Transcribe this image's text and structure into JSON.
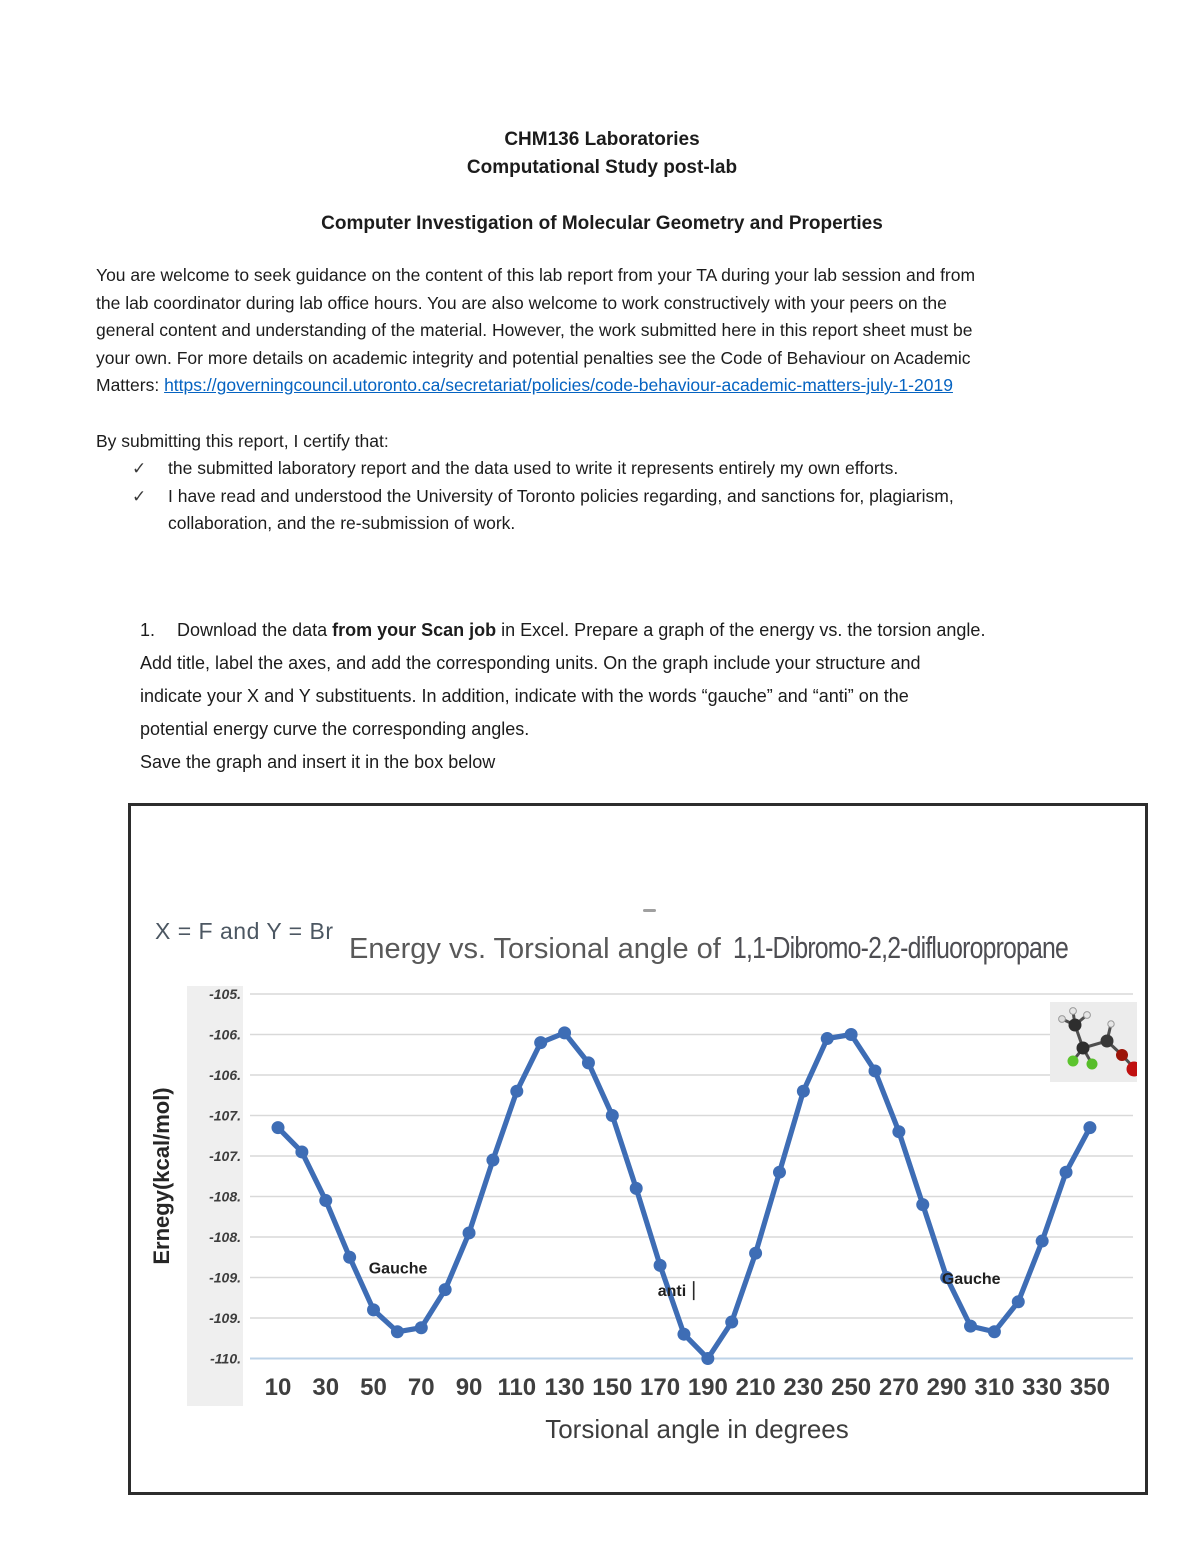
{
  "page": {
    "header": {
      "line1": "CHM136 Laboratories",
      "line2": "Computational Study post-lab",
      "subtitle": "Computer Investigation of Molecular Geometry and Properties"
    },
    "intro": {
      "lines": [
        "You are welcome to seek guidance on the content of this lab report from your TA during your lab session and from",
        "the lab coordinator during lab office hours.  You are also welcome to work constructively with your peers on the",
        "general content and understanding of the material.  However, the work submitted here in this report sheet must be",
        "your own. For more details on academic integrity and potential penalties see the Code of Behaviour on Academic"
      ],
      "matters_prefix": "Matters: ",
      "link_text": "https://governingcouncil.utoronto.ca/secretariat/policies/code-behaviour-academic-matters-july-1-2019"
    },
    "certify": {
      "intro": "By submitting this report, I certify that:",
      "check_glyph": "✓",
      "item1": "the submitted laboratory report and the data used to write it represents entirely my own efforts.",
      "item2_line1": "I have read and understood the University of Toronto policies regarding, and sanctions for, plagiarism,",
      "item2_line2": "collaboration, and the re-submission of work."
    },
    "task1": {
      "number": "1.",
      "line1_pre": "Download the data ",
      "line1_bold": "from your Scan job",
      "line1_post": " in Excel.  Prepare a graph of the energy vs. the torsion angle.",
      "line2": "Add title, label the axes, and add the corresponding units. On the graph include your structure and",
      "line3": "indicate your X and Y substituents.  In addition, indicate with the words “gauche” and “anti” on the",
      "line4": "potential energy curve the corresponding angles.",
      "line5": "Save the graph and insert it in the box below"
    }
  },
  "chart_box": {
    "substituents_note": "X = F and Y = Br",
    "title_prefix": "Energy vs. Torsional angle of",
    "title_compound": "1,1-Dibromo-2,2-difluoropropane"
  },
  "chart_data": {
    "type": "line",
    "title": "Energy vs. Torsional angle of 1,1-Dibromo-2,2-difluoropropane",
    "xlabel": "Torsional angle in degrees",
    "ylabel": "Ernegy(kcal/mol)",
    "legend": "none",
    "grid": true,
    "line_color": "#3e6db5",
    "grid_color": "#d9d9d9",
    "baseline_color": "#bdd3e8",
    "ylim": [
      -110.25,
      -105.4
    ],
    "x": [
      10,
      20,
      30,
      40,
      50,
      60,
      70,
      80,
      90,
      100,
      110,
      120,
      130,
      140,
      150,
      160,
      170,
      180,
      190,
      200,
      210,
      220,
      230,
      240,
      250,
      260,
      270,
      280,
      290,
      300,
      310,
      320,
      330,
      340,
      350
    ],
    "values": [
      -107.15,
      -107.45,
      -108.05,
      -108.75,
      -109.4,
      -109.67,
      -109.62,
      -109.15,
      -108.45,
      -107.55,
      -106.7,
      -106.1,
      -105.98,
      -106.35,
      -107.0,
      -107.9,
      -108.85,
      -109.7,
      -110.0,
      -109.55,
      -108.7,
      -107.7,
      -106.7,
      -106.05,
      -106.0,
      -106.45,
      -107.2,
      -108.1,
      -109.0,
      -109.6,
      -109.67,
      -109.3,
      -108.55,
      -107.7,
      -107.15
    ],
    "x_tick_labels": [
      "10",
      "30",
      "50",
      "70",
      "90",
      "110",
      "130",
      "150",
      "170",
      "190",
      "210",
      "230",
      "250",
      "270",
      "290",
      "310",
      "330",
      "350"
    ],
    "y_tick_labels": [
      "-105.",
      "-106.",
      "-106.",
      "-107.",
      "-107.",
      "-108.",
      "-108.",
      "-109.",
      "-109.",
      "-110."
    ],
    "y_tick_values": [
      -105.5,
      -106.0,
      -106.5,
      -107.0,
      -107.5,
      -108.0,
      -108.5,
      -109.0,
      -109.5,
      -110.0
    ],
    "annotations": [
      {
        "text": "Gauche",
        "x": 48,
        "y": -108.95,
        "caret": false
      },
      {
        "text": "anti",
        "x": 169,
        "y": -109.23,
        "caret": true
      },
      {
        "text": "Gauche",
        "x": 288,
        "y": -109.08,
        "caret": false
      }
    ]
  }
}
